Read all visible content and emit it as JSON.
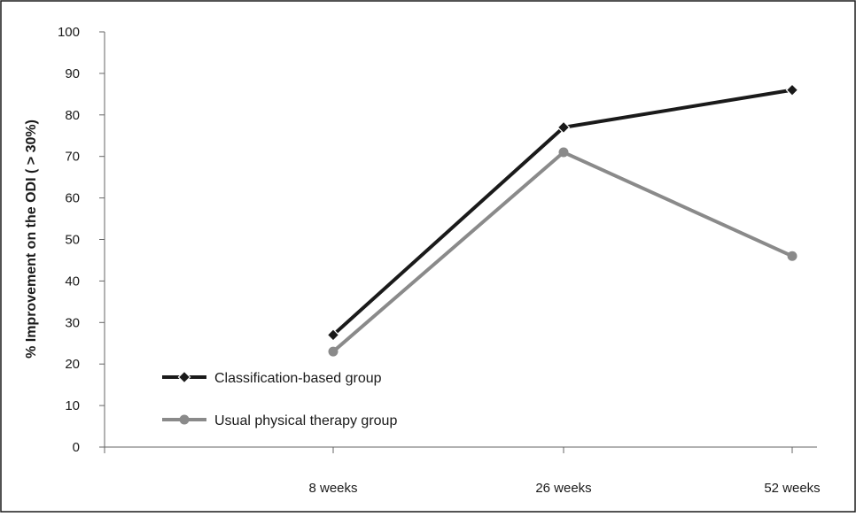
{
  "chart_data": {
    "type": "line",
    "categories": [
      "",
      "8 weeks",
      "26 weeks",
      "52 weeks"
    ],
    "ylabel": "% Improvement on the ODI ( > 30%)",
    "xlabel": "",
    "ylim": [
      0,
      100
    ],
    "yticks": [
      0,
      10,
      20,
      30,
      40,
      50,
      60,
      70,
      80,
      90,
      100
    ],
    "grid": false,
    "legend_position": "lower-left",
    "series": [
      {
        "name": "Classification-based group",
        "values": [
          null,
          27,
          77,
          86
        ],
        "color": "#1a1a1a",
        "marker": "diamond"
      },
      {
        "name": "Usual physical therapy group",
        "values": [
          null,
          23,
          71,
          46
        ],
        "color": "#8a8a8a",
        "marker": "circle"
      }
    ]
  }
}
